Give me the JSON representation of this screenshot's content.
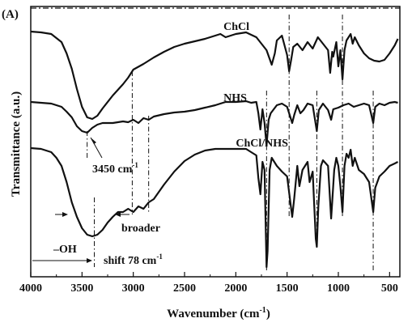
{
  "chart_data": {
    "type": "line",
    "panel_label": "(A)",
    "xlabel": "Wavenumber (cm",
    "xlabel_sup": "-1",
    "xlabel_close": ")",
    "ylabel": "Transmittance (a.u.)",
    "xlim": [
      4000,
      400
    ],
    "x_ticks": [
      4000,
      3500,
      3000,
      2500,
      2000,
      1500,
      1000,
      500
    ],
    "annotations": {
      "oh_peak": "3450 cm",
      "oh_peak_sup": "-1",
      "broader": "broader",
      "oh_group": "–OH",
      "shift": "shift 78 cm",
      "shift_sup": "-1"
    },
    "series": [
      {
        "name": "ChCl",
        "color": "#111111",
        "points": [
          [
            4000,
            39
          ],
          [
            3900,
            40
          ],
          [
            3800,
            42
          ],
          [
            3700,
            52
          ],
          [
            3650,
            66
          ],
          [
            3600,
            85
          ],
          [
            3550,
            110
          ],
          [
            3500,
            132
          ],
          [
            3450,
            145
          ],
          [
            3400,
            147
          ],
          [
            3350,
            143
          ],
          [
            3300,
            134
          ],
          [
            3200,
            118
          ],
          [
            3100,
            104
          ],
          [
            3050,
            96
          ],
          [
            3000,
            86
          ],
          [
            2900,
            79
          ],
          [
            2800,
            71
          ],
          [
            2700,
            64
          ],
          [
            2600,
            58
          ],
          [
            2500,
            54
          ],
          [
            2400,
            51
          ],
          [
            2300,
            48
          ],
          [
            2200,
            44
          ],
          [
            2150,
            42
          ],
          [
            2100,
            46
          ],
          [
            2050,
            44
          ],
          [
            2000,
            42
          ],
          [
            1900,
            40
          ],
          [
            1800,
            46
          ],
          [
            1700,
            62
          ],
          [
            1650,
            80
          ],
          [
            1620,
            66
          ],
          [
            1600,
            50
          ],
          [
            1550,
            44
          ],
          [
            1500,
            68
          ],
          [
            1480,
            88
          ],
          [
            1460,
            74
          ],
          [
            1440,
            58
          ],
          [
            1400,
            54
          ],
          [
            1350,
            62
          ],
          [
            1300,
            52
          ],
          [
            1250,
            60
          ],
          [
            1200,
            46
          ],
          [
            1150,
            54
          ],
          [
            1100,
            62
          ],
          [
            1080,
            90
          ],
          [
            1060,
            64
          ],
          [
            1050,
            70
          ],
          [
            1020,
            52
          ],
          [
            1000,
            82
          ],
          [
            980,
            62
          ],
          [
            960,
            98
          ],
          [
            940,
            62
          ],
          [
            920,
            50
          ],
          [
            880,
            42
          ],
          [
            860,
            54
          ],
          [
            840,
            46
          ],
          [
            800,
            56
          ],
          [
            750,
            66
          ],
          [
            700,
            72
          ],
          [
            650,
            75
          ],
          [
            600,
            76
          ],
          [
            550,
            74
          ],
          [
            500,
            66
          ],
          [
            450,
            56
          ],
          [
            420,
            48
          ]
        ]
      },
      {
        "name": "NHS",
        "color": "#111111",
        "points": [
          [
            4000,
            126
          ],
          [
            3900,
            127
          ],
          [
            3800,
            128
          ],
          [
            3700,
            132
          ],
          [
            3650,
            138
          ],
          [
            3600,
            145
          ],
          [
            3550,
            156
          ],
          [
            3500,
            162
          ],
          [
            3450,
            164
          ],
          [
            3400,
            158
          ],
          [
            3350,
            154
          ],
          [
            3300,
            152
          ],
          [
            3200,
            152
          ],
          [
            3100,
            150
          ],
          [
            3050,
            151
          ],
          [
            3000,
            148
          ],
          [
            2950,
            152
          ],
          [
            2900,
            146
          ],
          [
            2850,
            148
          ],
          [
            2800,
            144
          ],
          [
            2700,
            141
          ],
          [
            2600,
            139
          ],
          [
            2500,
            138
          ],
          [
            2400,
            136
          ],
          [
            2300,
            133
          ],
          [
            2200,
            130
          ],
          [
            2100,
            126
          ],
          [
            2000,
            126
          ],
          [
            1900,
            125
          ],
          [
            1850,
            127
          ],
          [
            1800,
            126
          ],
          [
            1780,
            140
          ],
          [
            1760,
            160
          ],
          [
            1740,
            135
          ],
          [
            1720,
            152
          ],
          [
            1700,
            180
          ],
          [
            1680,
            148
          ],
          [
            1660,
            140
          ],
          [
            1600,
            130
          ],
          [
            1550,
            128
          ],
          [
            1500,
            132
          ],
          [
            1450,
            152
          ],
          [
            1430,
            142
          ],
          [
            1400,
            130
          ],
          [
            1370,
            140
          ],
          [
            1340,
            136
          ],
          [
            1300,
            128
          ],
          [
            1250,
            130
          ],
          [
            1210,
            162
          ],
          [
            1190,
            136
          ],
          [
            1150,
            128
          ],
          [
            1100,
            136
          ],
          [
            1070,
            148
          ],
          [
            1050,
            135
          ],
          [
            1000,
            133
          ],
          [
            950,
            130
          ],
          [
            900,
            128
          ],
          [
            850,
            132
          ],
          [
            800,
            130
          ],
          [
            750,
            128
          ],
          [
            700,
            130
          ],
          [
            660,
            152
          ],
          [
            640,
            132
          ],
          [
            600,
            128
          ],
          [
            550,
            130
          ],
          [
            500,
            127
          ],
          [
            450,
            126
          ],
          [
            420,
            127
          ]
        ]
      },
      {
        "name": "ChCl/NHS",
        "color": "#111111",
        "points": [
          [
            4000,
            183
          ],
          [
            3900,
            184
          ],
          [
            3800,
            188
          ],
          [
            3750,
            195
          ],
          [
            3700,
            205
          ],
          [
            3650,
            225
          ],
          [
            3600,
            250
          ],
          [
            3550,
            268
          ],
          [
            3500,
            282
          ],
          [
            3450,
            290
          ],
          [
            3400,
            292
          ],
          [
            3350,
            290
          ],
          [
            3300,
            284
          ],
          [
            3250,
            275
          ],
          [
            3200,
            268
          ],
          [
            3150,
            262
          ],
          [
            3100,
            262
          ],
          [
            3050,
            258
          ],
          [
            3000,
            262
          ],
          [
            2950,
            255
          ],
          [
            2900,
            258
          ],
          [
            2850,
            250
          ],
          [
            2800,
            246
          ],
          [
            2700,
            228
          ],
          [
            2600,
            212
          ],
          [
            2500,
            199
          ],
          [
            2400,
            191
          ],
          [
            2300,
            186
          ],
          [
            2200,
            184
          ],
          [
            2100,
            184
          ],
          [
            2000,
            184
          ],
          [
            1900,
            184
          ],
          [
            1850,
            188
          ],
          [
            1800,
            192
          ],
          [
            1780,
            220
          ],
          [
            1760,
            240
          ],
          [
            1740,
            200
          ],
          [
            1720,
            210
          ],
          [
            1700,
            330
          ],
          [
            1690,
            310
          ],
          [
            1670,
            210
          ],
          [
            1650,
            195
          ],
          [
            1600,
            205
          ],
          [
            1550,
            212
          ],
          [
            1500,
            218
          ],
          [
            1450,
            268
          ],
          [
            1430,
            245
          ],
          [
            1400,
            205
          ],
          [
            1380,
            230
          ],
          [
            1350,
            210
          ],
          [
            1300,
            200
          ],
          [
            1280,
            225
          ],
          [
            1250,
            212
          ],
          [
            1220,
            295
          ],
          [
            1210,
            305
          ],
          [
            1195,
            255
          ],
          [
            1170,
            205
          ],
          [
            1150,
            198
          ],
          [
            1100,
            205
          ],
          [
            1070,
            270
          ],
          [
            1060,
            250
          ],
          [
            1040,
            210
          ],
          [
            1020,
            195
          ],
          [
            1000,
            205
          ],
          [
            980,
            230
          ],
          [
            960,
            262
          ],
          [
            940,
            205
          ],
          [
            920,
            190
          ],
          [
            900,
            195
          ],
          [
            880,
            185
          ],
          [
            860,
            205
          ],
          [
            840,
            195
          ],
          [
            800,
            210
          ],
          [
            750,
            215
          ],
          [
            700,
            225
          ],
          [
            660,
            262
          ],
          [
            640,
            232
          ],
          [
            600,
            218
          ],
          [
            550,
            212
          ],
          [
            500,
            205
          ],
          [
            450,
            202
          ],
          [
            420,
            200
          ]
        ]
      }
    ],
    "series_labels": [
      {
        "text": "ChCl",
        "x": 2120,
        "y": 32
      },
      {
        "text": "NHS",
        "x": 2120,
        "y": 120
      },
      {
        "text": "ChCl/NHS",
        "x": 2000,
        "y": 176
      }
    ],
    "reference_lines": [
      {
        "x": 3450,
        "y_from": 162,
        "y_to": 196
      },
      {
        "x": 3380,
        "y_from": 244,
        "y_to": 330
      },
      {
        "x": 3010,
        "y_from": 88,
        "y_to": 265
      },
      {
        "x": 2850,
        "y_from": 143,
        "y_to": 262
      },
      {
        "x": 1700,
        "y_from": 112,
        "y_to": 336
      },
      {
        "x": 1480,
        "y_from": 18,
        "y_to": 270
      },
      {
        "x": 1210,
        "y_from": 112,
        "y_to": 305
      },
      {
        "x": 960,
        "y_from": 18,
        "y_to": 268
      },
      {
        "x": 660,
        "y_from": 112,
        "y_to": 336
      }
    ]
  }
}
